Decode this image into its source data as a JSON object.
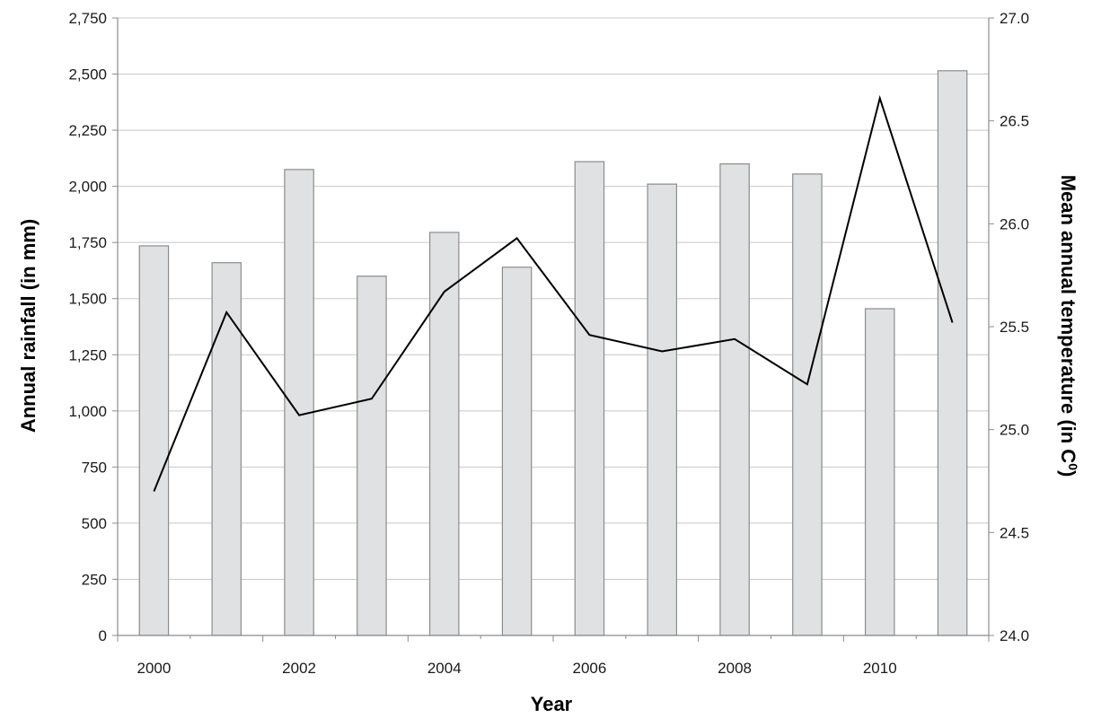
{
  "chart_data": {
    "type": "bar",
    "title": "",
    "xlabel": "Year",
    "ylabel": "Annual rainfall (in mm)",
    "y2label": "Mean annual temperature (in C",
    "y2label_sup": "0",
    "y2label_close": ")",
    "ylim": [
      0,
      2750
    ],
    "yticks": [
      "0",
      "250",
      "500",
      "750",
      "1,000",
      "1,250",
      "1,500",
      "1,750",
      "2,000",
      "2,250",
      "2,500",
      "2,750"
    ],
    "yticks_values": [
      0,
      250,
      500,
      750,
      1000,
      1250,
      1500,
      1750,
      2000,
      2250,
      2500,
      2750
    ],
    "y2lim": [
      24.0,
      27.0
    ],
    "y2ticks": [
      "24.0",
      "24.5",
      "25.0",
      "25.5",
      "26.0",
      "26.5",
      "27.0"
    ],
    "y2ticks_values": [
      24.0,
      24.5,
      25.0,
      25.5,
      26.0,
      26.5,
      27.0
    ],
    "categories": [
      "2000",
      "2001",
      "2002",
      "2003",
      "2004",
      "2005",
      "2006",
      "2007",
      "2008",
      "2009",
      "2010",
      "2011"
    ],
    "xticks_shown": [
      "2000",
      "2002",
      "2004",
      "2006",
      "2008",
      "2010"
    ],
    "grid": true,
    "legend": "none",
    "series": [
      {
        "type": "bar",
        "axis": "left",
        "color": "#e0e1e3",
        "edge_color": "#8c8c8c",
        "values": [
          1735,
          1660,
          2075,
          1600,
          1795,
          1640,
          2110,
          2010,
          2100,
          2055,
          1455,
          2515
        ]
      },
      {
        "type": "line",
        "axis": "right",
        "color": "#000000",
        "values": [
          24.7,
          25.57,
          25.07,
          25.15,
          25.67,
          25.93,
          25.46,
          25.38,
          25.44,
          25.22,
          26.61,
          25.52
        ]
      }
    ]
  }
}
